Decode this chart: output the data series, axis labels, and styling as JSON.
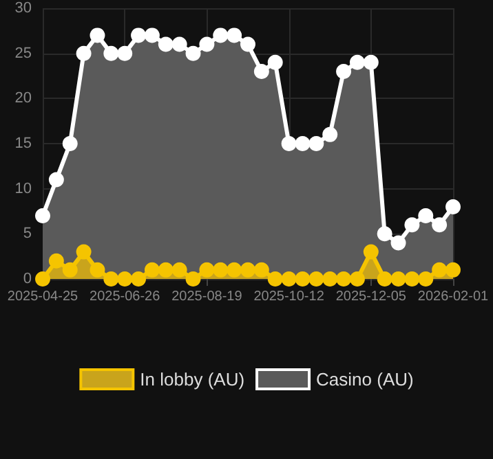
{
  "chart_data": {
    "type": "area",
    "categories": [
      "2025-04-25",
      null,
      null,
      null,
      null,
      null,
      "2025-06-26",
      null,
      null,
      null,
      null,
      null,
      "2025-08-19",
      null,
      null,
      null,
      null,
      null,
      "2025-10-12",
      null,
      null,
      null,
      null,
      null,
      "2025-12-05",
      null,
      null,
      null,
      null,
      null,
      "2026-02-01"
    ],
    "series": [
      {
        "name": "In lobby (AU)",
        "color": "#f5c400",
        "values": [
          0,
          2,
          1,
          3,
          1,
          0,
          0,
          0,
          1,
          1,
          1,
          0,
          1,
          1,
          1,
          1,
          1,
          0,
          0,
          0,
          0,
          0,
          0,
          0,
          3,
          0,
          0,
          0,
          0,
          1,
          1
        ]
      },
      {
        "name": "Casino (AU)",
        "color": "#ffffff",
        "values": [
          7,
          11,
          15,
          25,
          27,
          25,
          25,
          27,
          27,
          26,
          26,
          25,
          26,
          27,
          27,
          26,
          23,
          24,
          15,
          15,
          15,
          16,
          23,
          24,
          24,
          5,
          4,
          6,
          7,
          6,
          8
        ]
      }
    ],
    "ylim": [
      0,
      30
    ],
    "yticks": [
      0,
      5,
      10,
      15,
      20,
      25,
      30
    ],
    "grid": true,
    "legend": "bottom",
    "marker": "circle",
    "line_style": "solid"
  }
}
